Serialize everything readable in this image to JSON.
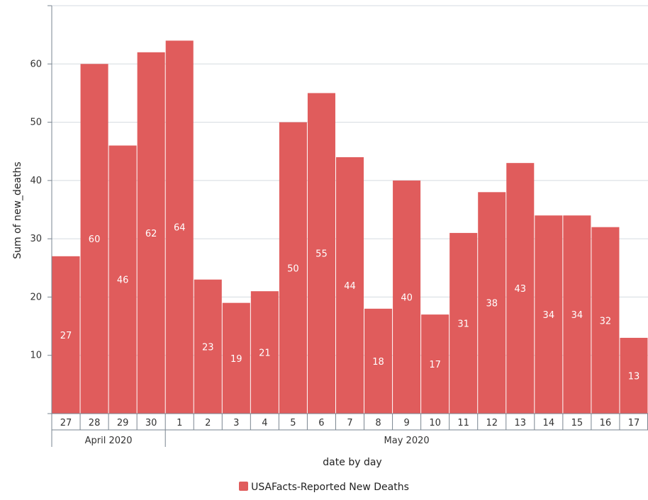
{
  "chart_data": {
    "type": "bar",
    "categories": [
      "27",
      "28",
      "29",
      "30",
      "1",
      "2",
      "3",
      "4",
      "5",
      "6",
      "7",
      "8",
      "9",
      "10",
      "11",
      "12",
      "13",
      "14",
      "15",
      "16",
      "17"
    ],
    "groups": [
      {
        "label": "April 2020",
        "count": 4
      },
      {
        "label": "May 2020",
        "count": 17
      }
    ],
    "series": [
      {
        "name": "USAFacts-Reported New Deaths",
        "values": [
          27,
          60,
          46,
          62,
          64,
          23,
          19,
          21,
          50,
          55,
          44,
          18,
          40,
          17,
          31,
          38,
          43,
          34,
          34,
          32,
          13
        ]
      }
    ],
    "xlabel": "date by day",
    "ylabel": "Sum of new_deaths",
    "ylim": [
      0,
      70
    ],
    "yticks": [
      10,
      20,
      30,
      40,
      50,
      60
    ],
    "grid": true,
    "legend_position": "bottom",
    "colors": {
      "bar": "#e05c5c",
      "grid": "#d5dbe0",
      "axis": "#7a8590"
    }
  }
}
